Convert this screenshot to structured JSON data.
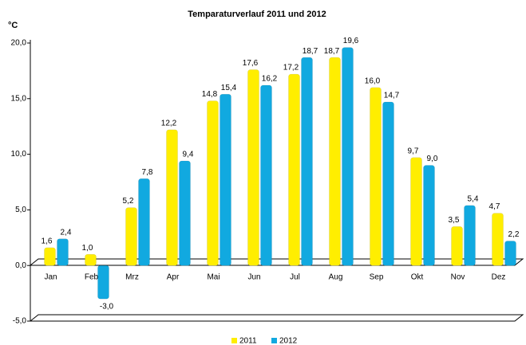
{
  "chart_data": {
    "type": "bar",
    "title": "Temparaturverlauf 2011 und 2012",
    "y_label": "°C",
    "categories": [
      "Jan",
      "Feb",
      "Mrz",
      "Apr",
      "Mai",
      "Jun",
      "Jul",
      "Aug",
      "Sep",
      "Okt",
      "Nov",
      "Dez"
    ],
    "series": [
      {
        "name": "2011",
        "color": "#ffee00",
        "values": [
          1.6,
          1.0,
          5.2,
          12.2,
          14.8,
          17.6,
          17.2,
          18.7,
          16.0,
          9.7,
          3.5,
          4.7
        ],
        "value_labels": [
          "1,6",
          "1,0",
          "5,2",
          "12,2",
          "14,8",
          "17,6",
          "17,2",
          "18,7",
          "16,0",
          "9,7",
          "3,5",
          "4,7"
        ]
      },
      {
        "name": "2012",
        "color": "#11a9e0",
        "values": [
          2.4,
          -3.0,
          7.8,
          9.4,
          15.4,
          16.2,
          18.7,
          19.6,
          14.7,
          9.0,
          5.4,
          2.2
        ],
        "value_labels": [
          "2,4",
          "-3,0",
          "7,8",
          "9,4",
          "15,4",
          "16,2",
          "18,7",
          "19,6",
          "14,7",
          "9,0",
          "5,4",
          "2,2"
        ]
      }
    ],
    "ylim": [
      -5,
      20
    ],
    "yticks": [
      {
        "value": -5,
        "label": "-5,0"
      },
      {
        "value": 0,
        "label": "0,0"
      },
      {
        "value": 5,
        "label": "5,0"
      },
      {
        "value": 10,
        "label": "10,0"
      },
      {
        "value": 15,
        "label": "15,0"
      },
      {
        "value": 20,
        "label": "20,0"
      }
    ],
    "legend": "bottom"
  }
}
